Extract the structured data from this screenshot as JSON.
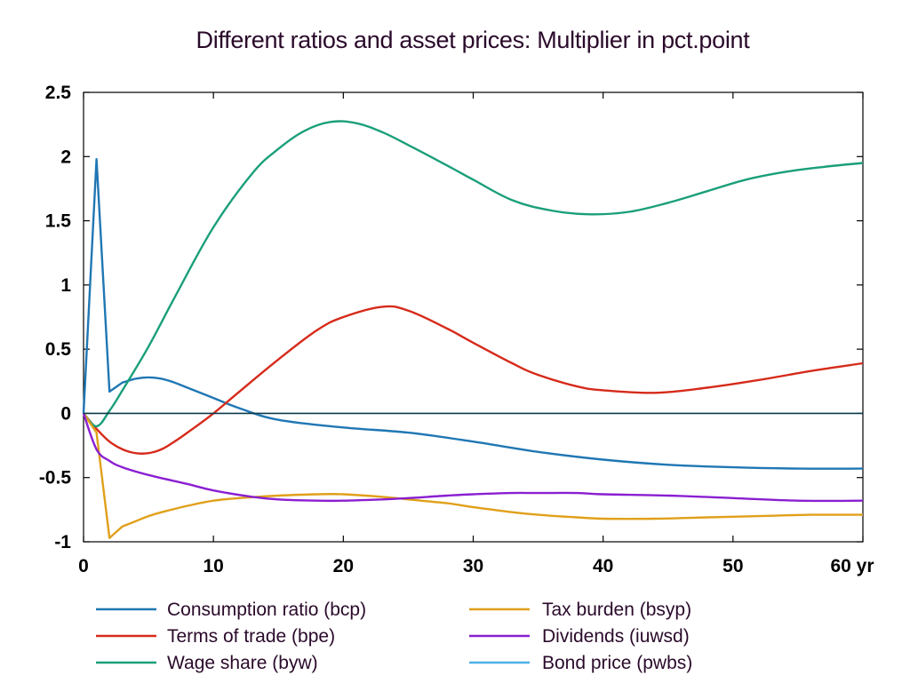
{
  "chart_data": {
    "type": "line",
    "title": "Different ratios and asset prices: Multiplier in pct.point",
    "xlabel": "",
    "ylabel": "",
    "xlim": [
      0,
      60
    ],
    "ylim": [
      -1,
      2.5
    ],
    "x_ticks": [
      0,
      10,
      20,
      30,
      40,
      50,
      60
    ],
    "x_tick_labels": [
      "0",
      "10",
      "20",
      "30",
      "40",
      "50",
      "60 yr"
    ],
    "y_ticks": [
      -1,
      -0.5,
      0,
      0.5,
      1,
      1.5,
      2,
      2.5
    ],
    "y_tick_labels": [
      "-1",
      "-0.5",
      "0",
      "0.5",
      "1",
      "1.5",
      "2",
      "2.5"
    ],
    "grid": false,
    "legend_position": "bottom",
    "series": [
      {
        "name": "Consumption ratio (bcp)",
        "color": "#1f77b4",
        "x": [
          0,
          1,
          2,
          3,
          4,
          5,
          6,
          7,
          8,
          10,
          12,
          15,
          20,
          25,
          30,
          35,
          40,
          45,
          50,
          55,
          60
        ],
        "values": [
          0,
          1.98,
          0.17,
          0.24,
          0.27,
          0.28,
          0.27,
          0.24,
          0.2,
          0.12,
          0.04,
          -0.05,
          -0.11,
          -0.15,
          -0.22,
          -0.3,
          -0.36,
          -0.4,
          -0.42,
          -0.43,
          -0.43
        ]
      },
      {
        "name": "Terms of trade (bpe)",
        "color": "#d62a1a",
        "x": [
          0,
          1,
          2,
          3,
          4,
          5,
          6,
          7,
          8,
          10,
          12,
          15,
          18,
          20,
          23,
          25,
          28,
          30,
          33,
          35,
          38,
          40,
          44,
          48,
          52,
          56,
          60
        ],
        "values": [
          0,
          -0.12,
          -0.22,
          -0.28,
          -0.31,
          -0.31,
          -0.28,
          -0.22,
          -0.15,
          0.0,
          0.17,
          0.42,
          0.65,
          0.75,
          0.83,
          0.8,
          0.66,
          0.55,
          0.39,
          0.3,
          0.21,
          0.18,
          0.16,
          0.2,
          0.26,
          0.33,
          0.39
        ]
      },
      {
        "name": "Wage share (byw)",
        "color": "#1a9f7a",
        "x": [
          0,
          1,
          2,
          3,
          5,
          7,
          10,
          13,
          15,
          17,
          19,
          21,
          23,
          25,
          28,
          30,
          33,
          36,
          39,
          42,
          45,
          48,
          51,
          54,
          57,
          60
        ],
        "values": [
          0,
          -0.1,
          0.02,
          0.18,
          0.52,
          0.9,
          1.45,
          1.87,
          2.06,
          2.2,
          2.27,
          2.26,
          2.19,
          2.09,
          1.93,
          1.82,
          1.66,
          1.58,
          1.55,
          1.57,
          1.64,
          1.73,
          1.82,
          1.88,
          1.92,
          1.95
        ]
      },
      {
        "name": "Tax burden (bsyp)",
        "color": "#e0a01a",
        "x": [
          0,
          1,
          2,
          3,
          4,
          5,
          6,
          8,
          10,
          12,
          15,
          18,
          20,
          23,
          25,
          28,
          30,
          33,
          35,
          38,
          40,
          44,
          48,
          52,
          56,
          60
        ],
        "values": [
          0,
          -0.15,
          -0.97,
          -0.88,
          -0.84,
          -0.8,
          -0.77,
          -0.72,
          -0.68,
          -0.66,
          -0.64,
          -0.63,
          -0.63,
          -0.65,
          -0.67,
          -0.7,
          -0.73,
          -0.77,
          -0.79,
          -0.81,
          -0.82,
          -0.82,
          -0.81,
          -0.8,
          -0.79,
          -0.79
        ]
      },
      {
        "name": "Dividends (iuwsd)",
        "color": "#8a1fd1",
        "x": [
          0,
          1,
          2,
          3,
          5,
          8,
          10,
          13,
          15,
          18,
          20,
          23,
          25,
          28,
          30,
          33,
          35,
          38,
          40,
          45,
          50,
          55,
          60
        ],
        "values": [
          0,
          -0.28,
          -0.37,
          -0.42,
          -0.48,
          -0.55,
          -0.6,
          -0.65,
          -0.67,
          -0.68,
          -0.68,
          -0.67,
          -0.66,
          -0.64,
          -0.63,
          -0.62,
          -0.62,
          -0.62,
          -0.63,
          -0.64,
          -0.66,
          -0.68,
          -0.68
        ]
      },
      {
        "name": "Bond price (pwbs)",
        "color": "#4ab0e8",
        "x": [
          0,
          60
        ],
        "values": [
          0,
          0
        ]
      }
    ]
  }
}
